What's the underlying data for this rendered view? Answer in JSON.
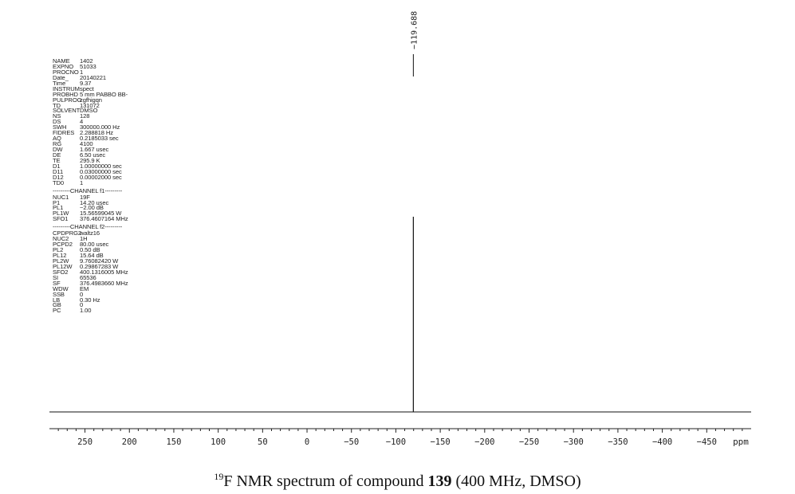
{
  "chart_data": {
    "type": "line",
    "xlabel": "ppm",
    "xlim": [
      290,
      -500
    ],
    "x_ticks": [
      250,
      200,
      150,
      100,
      50,
      0,
      -50,
      -100,
      -150,
      -200,
      -250,
      -300,
      -350,
      -400,
      -450
    ],
    "x_tick_labels": [
      "250",
      "200",
      "150",
      "100",
      "50",
      "0",
      "−50",
      "−100",
      "−150",
      "−200",
      "−250",
      "−300",
      "−350",
      "−400",
      "−450"
    ],
    "minor_tick_step": 10,
    "series": [
      {
        "peaks": [
          {
            "x": -119.688,
            "label": "−119.688",
            "relative_height": 1.0
          }
        ]
      }
    ]
  },
  "parameters_top": [
    [
      "NAME",
      "1402"
    ],
    [
      "EXPNO",
      "51033"
    ],
    [
      "PROCNO",
      "1"
    ],
    [
      "Date_",
      "20140221"
    ],
    [
      "Time",
      "9.37"
    ],
    [
      "INSTRUM",
      "spect"
    ],
    [
      "PROBHD",
      "5 mm PABBO BB-"
    ],
    [
      "PULPROG",
      "zgfhigqn"
    ],
    [
      "TD",
      "131072"
    ],
    [
      "SOLVENT",
      "DMSO"
    ],
    [
      "NS",
      "128"
    ],
    [
      "DS",
      "4"
    ],
    [
      "SWH",
      "300000.000 Hz"
    ],
    [
      "FIDRES",
      "2.288818 Hz"
    ],
    [
      "AQ",
      "0.2185033 sec"
    ],
    [
      "RG",
      "4100"
    ],
    [
      "DW",
      "1.667 usec"
    ],
    [
      "DE",
      "6.50 usec"
    ],
    [
      "TE",
      "295.9 K"
    ],
    [
      "D1",
      "1.00000000 sec"
    ],
    [
      "D11",
      "0.03000000 sec"
    ],
    [
      "D12",
      "0.00002000 sec"
    ],
    [
      "TD0",
      "1"
    ]
  ],
  "channel_f1": {
    "header": "CHANNEL f1",
    "rows": [
      [
        "NUC1",
        "19F"
      ],
      [
        "P1",
        "14.20 usec"
      ],
      [
        "PL1",
        "−2.00 dB"
      ],
      [
        "PL1W",
        "15.56599045 W"
      ],
      [
        "SFO1",
        "376.4607164 MHz"
      ]
    ]
  },
  "channel_f2": {
    "header": "CHANNEL f2",
    "rows": [
      [
        "CPDPRG2",
        "waltz16"
      ],
      [
        "NUC2",
        "1H"
      ],
      [
        "PCPD2",
        "80.00 usec"
      ],
      [
        "PL2",
        "0.50 dB"
      ],
      [
        "PL12",
        "15.64 dB"
      ],
      [
        "PL2W",
        "9.76082420 W"
      ],
      [
        "PL12W",
        "0.29867283 W"
      ],
      [
        "SFO2",
        "400.1316005 MHz"
      ],
      [
        "SI",
        "65536"
      ],
      [
        "SF",
        "376.4983660 MHz"
      ],
      [
        "WDW",
        "EM"
      ],
      [
        "SSB",
        "0"
      ],
      [
        "LB",
        "0.30 Hz"
      ],
      [
        "GB",
        "0"
      ],
      [
        "PC",
        "1.00"
      ]
    ]
  },
  "caption": {
    "superscript": "19",
    "before": "F NMR spectrum of compound ",
    "compound": "139",
    "after": " (400 MHz, DMSO)"
  },
  "colors": {
    "trace": "#111111",
    "axis": "#222222",
    "text": "#222222"
  }
}
